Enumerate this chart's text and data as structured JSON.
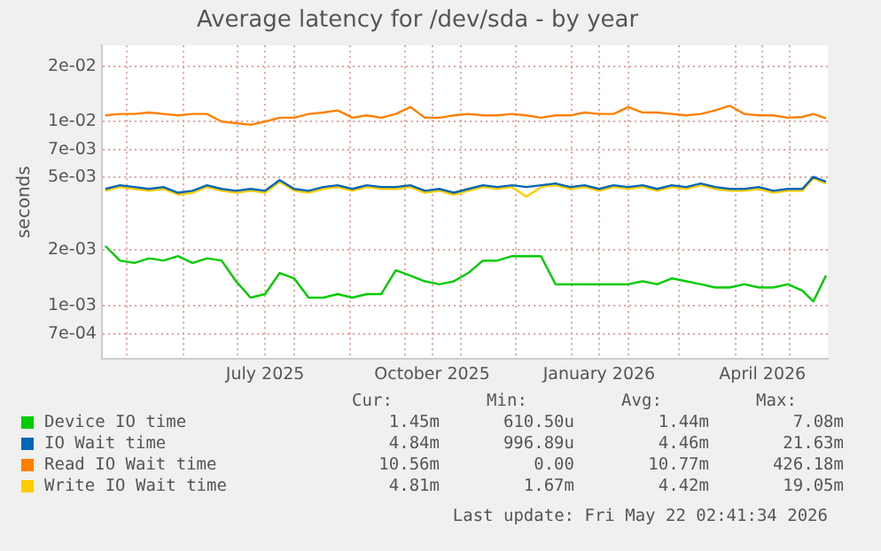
{
  "chart_data": {
    "type": "line",
    "title": "Average latency for /dev/sda - by year",
    "ylabel": "seconds",
    "log": "y",
    "grid": true,
    "legend": "bottom",
    "marker": "none",
    "line_style": "solid",
    "x": [
      "2025-04-19",
      "2025-04-27",
      "2025-05-05",
      "2025-05-13",
      "2025-05-21",
      "2025-05-29",
      "2025-06-06",
      "2025-06-14",
      "2025-06-22",
      "2025-06-30",
      "2025-07-08",
      "2025-07-16",
      "2025-07-24",
      "2025-08-01",
      "2025-08-09",
      "2025-08-17",
      "2025-08-25",
      "2025-09-02",
      "2025-09-10",
      "2025-09-18",
      "2025-09-26",
      "2025-10-04",
      "2025-10-12",
      "2025-10-20",
      "2025-10-28",
      "2025-11-05",
      "2025-11-13",
      "2025-11-21",
      "2025-11-29",
      "2025-12-07",
      "2025-12-15",
      "2025-12-23",
      "2025-12-31",
      "2026-01-08",
      "2026-01-16",
      "2026-01-24",
      "2026-02-01",
      "2026-02-09",
      "2026-02-17",
      "2026-02-25",
      "2026-03-05",
      "2026-03-13",
      "2026-03-21",
      "2026-03-29",
      "2026-04-06",
      "2026-04-14",
      "2026-04-22",
      "2026-04-30",
      "2026-05-08",
      "2026-05-14",
      "2026-05-21"
    ],
    "xlim": [
      "2025-04-17",
      "2026-05-22"
    ],
    "xticks": [
      {
        "value": "2025-05-01",
        "label": null
      },
      {
        "value": "2025-06-01",
        "label": null
      },
      {
        "value": "2025-07-01",
        "label": null
      },
      {
        "value": "2025-07-16",
        "label": "July 2025"
      },
      {
        "value": "2025-08-01",
        "label": null
      },
      {
        "value": "2025-09-01",
        "label": null
      },
      {
        "value": "2025-10-01",
        "label": null
      },
      {
        "value": "2025-10-16",
        "label": "October 2025"
      },
      {
        "value": "2025-11-01",
        "label": null
      },
      {
        "value": "2025-12-01",
        "label": null
      },
      {
        "value": "2026-01-01",
        "label": null
      },
      {
        "value": "2026-01-16",
        "label": "January 2026"
      },
      {
        "value": "2026-02-01",
        "label": null
      },
      {
        "value": "2026-03-01",
        "label": null
      },
      {
        "value": "2026-04-01",
        "label": null
      },
      {
        "value": "2026-04-16",
        "label": "April 2026"
      },
      {
        "value": "2026-05-01",
        "label": null
      }
    ],
    "ylim": [
      0.00051,
      0.026
    ],
    "yticks": [
      {
        "value": 0.0007,
        "label": "7e-04"
      },
      {
        "value": 0.001,
        "label": "1e-03"
      },
      {
        "value": 0.002,
        "label": "2e-03"
      },
      {
        "value": 0.005,
        "label": "5e-03"
      },
      {
        "value": 0.007,
        "label": "7e-03"
      },
      {
        "value": 0.01,
        "label": "1e-02"
      },
      {
        "value": 0.02,
        "label": "2e-02"
      }
    ],
    "series": [
      {
        "name": "Device IO time",
        "color": "#00cc00",
        "values": [
          0.0021,
          0.00175,
          0.0017,
          0.0018,
          0.00175,
          0.00185,
          0.0017,
          0.0018,
          0.00175,
          0.00135,
          0.0011,
          0.00115,
          0.0015,
          0.0014,
          0.0011,
          0.0011,
          0.00115,
          0.0011,
          0.00115,
          0.00115,
          0.00155,
          0.00145,
          0.00135,
          0.0013,
          0.00135,
          0.0015,
          0.00175,
          0.00175,
          0.00185,
          0.00185,
          0.00185,
          0.0013,
          0.0013,
          0.0013,
          0.0013,
          0.0013,
          0.0013,
          0.00135,
          0.0013,
          0.0014,
          0.00135,
          0.0013,
          0.00125,
          0.00125,
          0.0013,
          0.00125,
          0.00125,
          0.0013,
          0.0012,
          0.00105,
          0.00145
        ]
      },
      {
        "name": "IO Wait time",
        "color": "#0066b3",
        "values": [
          0.0043,
          0.0045,
          0.0044,
          0.0043,
          0.0044,
          0.0041,
          0.0042,
          0.0045,
          0.0043,
          0.0042,
          0.0043,
          0.0042,
          0.0048,
          0.0043,
          0.0042,
          0.0044,
          0.0045,
          0.0043,
          0.0045,
          0.0044,
          0.0044,
          0.0045,
          0.0042,
          0.0043,
          0.0041,
          0.0043,
          0.0045,
          0.0044,
          0.0045,
          0.0044,
          0.0045,
          0.0046,
          0.0044,
          0.0045,
          0.0043,
          0.0045,
          0.0044,
          0.0045,
          0.0043,
          0.0045,
          0.0044,
          0.0046,
          0.0044,
          0.0043,
          0.0043,
          0.0044,
          0.0042,
          0.0043,
          0.0043,
          0.005,
          0.0047
        ]
      },
      {
        "name": "Read IO Wait time",
        "color": "#ff8000",
        "values": [
          0.0108,
          0.011,
          0.011,
          0.0112,
          0.011,
          0.0108,
          0.011,
          0.011,
          0.01,
          0.0098,
          0.0096,
          0.01,
          0.0105,
          0.0105,
          0.011,
          0.0112,
          0.0115,
          0.0105,
          0.0108,
          0.0105,
          0.011,
          0.012,
          0.0105,
          0.0105,
          0.0108,
          0.011,
          0.0108,
          0.0108,
          0.011,
          0.0108,
          0.0105,
          0.0108,
          0.0108,
          0.0112,
          0.011,
          0.011,
          0.012,
          0.0112,
          0.0112,
          0.011,
          0.0108,
          0.011,
          0.0115,
          0.0122,
          0.011,
          0.0108,
          0.0108,
          0.0105,
          0.0106,
          0.011,
          0.0104
        ]
      },
      {
        "name": "Write IO Wait time",
        "color": "#ffcc00",
        "values": [
          0.0042,
          0.0044,
          0.0043,
          0.0042,
          0.0043,
          0.004,
          0.0041,
          0.0044,
          0.0042,
          0.0041,
          0.0042,
          0.0041,
          0.0047,
          0.0042,
          0.0041,
          0.0043,
          0.0044,
          0.0042,
          0.0044,
          0.0043,
          0.0043,
          0.0044,
          0.0041,
          0.0042,
          0.004,
          0.0042,
          0.0044,
          0.0043,
          0.0044,
          0.0039,
          0.0044,
          0.0045,
          0.0043,
          0.0044,
          0.0042,
          0.0044,
          0.0043,
          0.0044,
          0.0042,
          0.0044,
          0.0043,
          0.0045,
          0.0043,
          0.0042,
          0.0042,
          0.0043,
          0.0041,
          0.0042,
          0.0042,
          0.0049,
          0.0046
        ]
      }
    ],
    "annotations": [
      "Cur:",
      "Min:",
      "Avg:",
      "Max:",
      "1.45m",
      "610.50u",
      "1.44m",
      "7.08m",
      "4.84m",
      "996.89u",
      "4.46m",
      "21.63m",
      "10.56m",
      "0.00",
      "10.77m",
      "426.18m",
      "4.81m",
      "1.67m",
      "4.42m",
      "19.05m",
      "Last update: Fri May 22 02:41:34 2026"
    ]
  }
}
